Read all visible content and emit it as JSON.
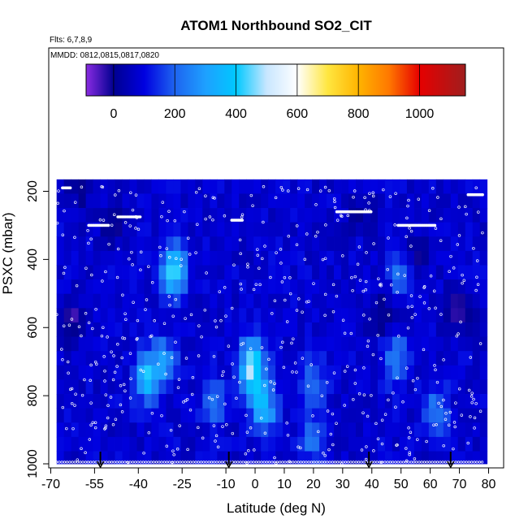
{
  "chart_data": {
    "type": "heatmap",
    "title": "ATOM1 Northbound SO2_CIT",
    "annotations": [
      "Flts: 6,7,8,9",
      "MMDD: 0812,0815,0817,0820"
    ],
    "xlabel": "Latitude (deg N)",
    "ylabel": "PSXC (mbar)",
    "xlim": [
      -70,
      80
    ],
    "ylim": [
      1000,
      150
    ],
    "x_ticks": [
      -70,
      -55,
      -40,
      -25,
      -10,
      0,
      10,
      20,
      30,
      40,
      50,
      60,
      70,
      80
    ],
    "y_ticks": [
      200,
      400,
      600,
      800,
      1000
    ],
    "colorbar": {
      "range": [
        -90,
        1150
      ],
      "ticks": [
        0,
        200,
        400,
        600,
        800,
        1000
      ],
      "stops": [
        {
          "value": -90,
          "color": "#8a2be2"
        },
        {
          "value": 0,
          "color": "#000090"
        },
        {
          "value": 100,
          "color": "#0000e0"
        },
        {
          "value": 200,
          "color": "#1e64f0"
        },
        {
          "value": 300,
          "color": "#1ea0ff"
        },
        {
          "value": 400,
          "color": "#00c8ff"
        },
        {
          "value": 500,
          "color": "#c8e6ff"
        },
        {
          "value": 600,
          "color": "#ffffff"
        },
        {
          "value": 700,
          "color": "#ffe640"
        },
        {
          "value": 800,
          "color": "#ffb400"
        },
        {
          "value": 900,
          "color": "#ff7800"
        },
        {
          "value": 1000,
          "color": "#e60000"
        },
        {
          "value": 1150,
          "color": "#a01e1e"
        }
      ]
    },
    "base_field": {
      "lat_range": [
        -68,
        78
      ],
      "p_range": [
        1000,
        165
      ],
      "value": 80
    },
    "heat_regions": [
      {
        "lat": -28,
        "p": 435,
        "value": 360
      },
      {
        "lat": -37,
        "p": 745,
        "value": 300
      },
      {
        "lat": -31,
        "p": 700,
        "value": 180
      },
      {
        "lat": -1,
        "p": 740,
        "value": 260
      },
      {
        "lat": 3,
        "p": 840,
        "value": 270
      },
      {
        "lat": -1,
        "p": 690,
        "value": 200
      },
      {
        "lat": -14,
        "p": 815,
        "value": 150
      },
      {
        "lat": 48,
        "p": 690,
        "value": 180
      },
      {
        "lat": 50,
        "p": 440,
        "value": 150
      },
      {
        "lat": 62,
        "p": 840,
        "value": 150
      },
      {
        "lat": 20,
        "p": 760,
        "value": 140
      },
      {
        "lat": 20,
        "p": 930,
        "value": 150
      }
    ],
    "low_regions": [
      {
        "lat": -63,
        "p": 585,
        "value": -30
      },
      {
        "lat": 37,
        "p": 260,
        "value": 10
      },
      {
        "lat": -60,
        "p": 200,
        "value": 10
      },
      {
        "lat": 43,
        "p": 570,
        "value": -20
      },
      {
        "lat": -48,
        "p": 300,
        "value": 15
      },
      {
        "lat": 55,
        "p": 390,
        "value": -30
      },
      {
        "lat": 70,
        "p": 545,
        "value": -20
      }
    ],
    "flight_level_segments": [
      {
        "lat": [
          -66,
          -63
        ],
        "p": 190
      },
      {
        "lat": [
          -47,
          -39
        ],
        "p": 275
      },
      {
        "lat": [
          -8,
          -4
        ],
        "p": 285
      },
      {
        "lat": [
          28,
          40
        ],
        "p": 260
      },
      {
        "lat": [
          49,
          62
        ],
        "p": 300
      },
      {
        "lat": [
          -57,
          -50
        ],
        "p": 300
      },
      {
        "lat": [
          73,
          78
        ],
        "p": 210
      }
    ],
    "arrow_markers_lat": [
      -53,
      -9,
      39,
      67
    ]
  }
}
